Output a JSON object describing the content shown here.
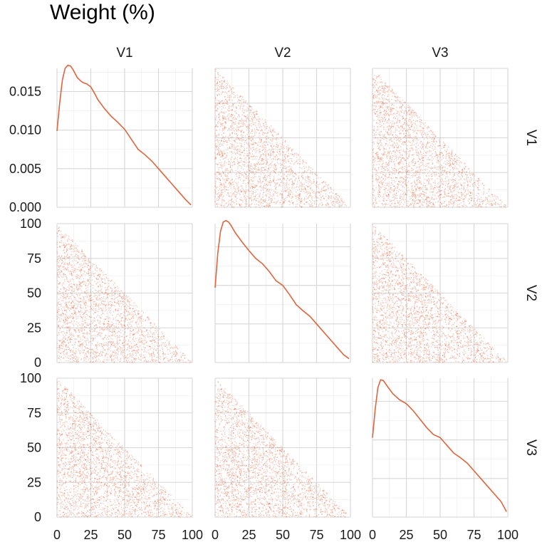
{
  "title": "Weight (%)",
  "chart_data": {
    "type": "scatter-matrix",
    "title": "Weight (%)",
    "variables": [
      "V1",
      "V2",
      "V3"
    ],
    "color": "#e0643c",
    "grid": true,
    "x_ticks": [
      0,
      25,
      50,
      75,
      100
    ],
    "x_tick_labels": [
      "0",
      "25",
      "50",
      "75",
      "100"
    ],
    "xlim": [
      0,
      100
    ],
    "density_ylim": [
      0,
      0.018
    ],
    "density_y_ticks": [
      0.0,
      0.005,
      0.01,
      0.015
    ],
    "density_y_tick_labels": [
      "0.000",
      "0.005",
      "0.010",
      "0.015"
    ],
    "scatter_ylim": [
      0,
      100
    ],
    "scatter_y_ticks": [
      0,
      25,
      50,
      75,
      100
    ],
    "scatter_y_tick_labels": [
      "0",
      "25",
      "50",
      "75",
      "100"
    ],
    "scatter_constraint": "x + y <= 100",
    "scatter_point_count": 2500,
    "density": {
      "V1": {
        "x": [
          0,
          2,
          4,
          6,
          8,
          10,
          12,
          15,
          18,
          20,
          22,
          25,
          28,
          30,
          35,
          40,
          45,
          50,
          55,
          60,
          65,
          70,
          75,
          80,
          85,
          90,
          95,
          99
        ],
        "y": [
          0.0099,
          0.0135,
          0.0165,
          0.018,
          0.0184,
          0.0183,
          0.0178,
          0.0168,
          0.0163,
          0.0161,
          0.016,
          0.0156,
          0.0147,
          0.014,
          0.0128,
          0.0118,
          0.011,
          0.0101,
          0.0088,
          0.0075,
          0.0068,
          0.006,
          0.005,
          0.004,
          0.003,
          0.002,
          0.001,
          0.0003
        ]
      },
      "V2": {
        "x": [
          0,
          2,
          4,
          6,
          8,
          10,
          12,
          15,
          20,
          25,
          30,
          35,
          40,
          45,
          50,
          55,
          60,
          65,
          70,
          75,
          80,
          85,
          90,
          95,
          99
        ],
        "y": [
          0.0097,
          0.0142,
          0.017,
          0.0182,
          0.0184,
          0.0182,
          0.0177,
          0.0168,
          0.0156,
          0.0145,
          0.0135,
          0.0128,
          0.0118,
          0.0106,
          0.01,
          0.0088,
          0.0075,
          0.0067,
          0.006,
          0.005,
          0.004,
          0.003,
          0.002,
          0.001,
          0.0005
        ]
      },
      "V3": {
        "x": [
          0,
          2,
          4,
          6,
          8,
          10,
          12,
          15,
          20,
          25,
          30,
          35,
          40,
          45,
          50,
          55,
          60,
          65,
          70,
          75,
          80,
          85,
          90,
          95,
          99
        ],
        "y": [
          0.0103,
          0.014,
          0.0168,
          0.0178,
          0.0177,
          0.0172,
          0.0167,
          0.016,
          0.0152,
          0.0147,
          0.0138,
          0.0127,
          0.0116,
          0.0107,
          0.0103,
          0.0093,
          0.0083,
          0.0077,
          0.007,
          0.006,
          0.005,
          0.004,
          0.003,
          0.002,
          0.0007
        ]
      }
    }
  }
}
